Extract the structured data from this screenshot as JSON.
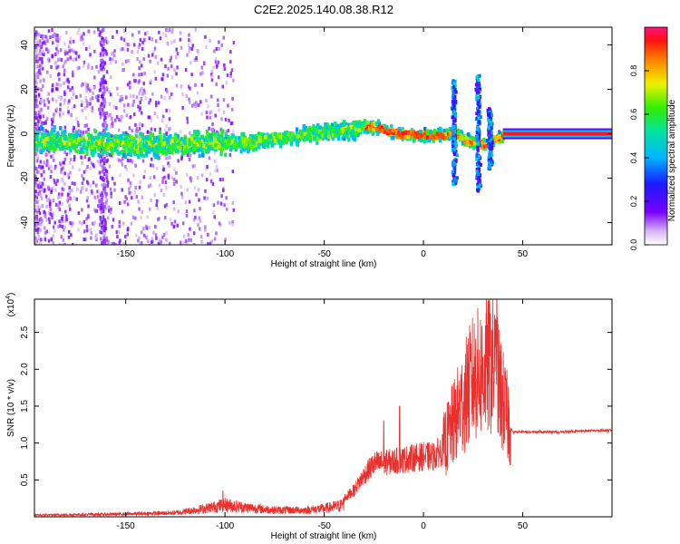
{
  "title": "C2E2.2025.140.08.38.R12",
  "chart_data": [
    {
      "type": "heatmap",
      "xlabel": "Height of straight line (km)",
      "ylabel": "Frequency (Hz)",
      "xlim": [
        -196,
        95
      ],
      "ylim": [
        -50,
        48
      ],
      "xticks": [
        -150,
        -100,
        -50,
        0,
        50
      ],
      "yticks": [
        -40,
        -20,
        0,
        20,
        40
      ],
      "colorbar": {
        "label": "Normalized spectral amplitude",
        "range": [
          0,
          1
        ],
        "ticks": [
          "0.0",
          "0.2",
          "0.4",
          "0.6",
          "0.8"
        ],
        "colormap": "rainbow (white-violet-blue-cyan-green-yellow-red-magenta)"
      },
      "ridge": {
        "x": [
          -196,
          -170,
          -150,
          -130,
          -110,
          -90,
          -70,
          -55,
          -45,
          -35,
          -30,
          -25,
          -15,
          0,
          10,
          15,
          20,
          30,
          40,
          55,
          95
        ],
        "y": [
          -2,
          -3,
          -4,
          -4,
          -3,
          -3,
          -1,
          1,
          2,
          3,
          4,
          4,
          1,
          0,
          0,
          2,
          -2,
          -4,
          0,
          0,
          0
        ]
      },
      "features": [
        {
          "x": 15,
          "y_top": 25,
          "y_bottom": -22
        },
        {
          "x": 27,
          "y_top": 27,
          "y_bottom": -25
        },
        {
          "x": 33,
          "y_top": 12,
          "y_bottom": -15
        }
      ],
      "tone_line": {
        "x_start": 40,
        "x_end": 95,
        "y": 0
      }
    },
    {
      "type": "line",
      "xlabel": "Height of straight line (km)",
      "ylabel": "SNR (10 * v/v)",
      "multiplier": "(x10",
      "multiplier_exp": "4",
      "multiplier_close": ")",
      "xlim": [
        -196,
        95
      ],
      "ylim": [
        0,
        2.95
      ],
      "xticks": [
        -150,
        -100,
        -50,
        0,
        50
      ],
      "yticks": [
        0.5,
        1.0,
        1.5,
        2.0,
        2.5
      ],
      "series_color": "#e8312f",
      "envelope": {
        "x": [
          -196,
          -150,
          -125,
          -110,
          -100,
          -90,
          -75,
          -60,
          -50,
          -42,
          -35,
          -30,
          -25,
          -18,
          -12,
          -5,
          0,
          5,
          10,
          15,
          20,
          25,
          30,
          35,
          38,
          42,
          45,
          55,
          70,
          85,
          95
        ],
        "y": [
          0.03,
          0.05,
          0.07,
          0.15,
          0.22,
          0.17,
          0.12,
          0.12,
          0.15,
          0.2,
          0.35,
          0.55,
          0.7,
          0.72,
          0.75,
          0.78,
          0.8,
          0.8,
          0.9,
          1.2,
          1.5,
          1.8,
          1.9,
          2.0,
          1.7,
          1.3,
          1.15,
          1.15,
          1.15,
          1.17,
          1.17
        ]
      },
      "peaks": [
        {
          "x": -101,
          "y": 0.35
        },
        {
          "x": -20,
          "y": 1.3
        },
        {
          "x": -12,
          "y": 1.5
        },
        {
          "x": 22,
          "y": 1.85
        },
        {
          "x": 31,
          "y": 2.05
        },
        {
          "x": 37,
          "y": 2.95
        },
        {
          "x": 36,
          "y": 2.6
        }
      ]
    }
  ]
}
